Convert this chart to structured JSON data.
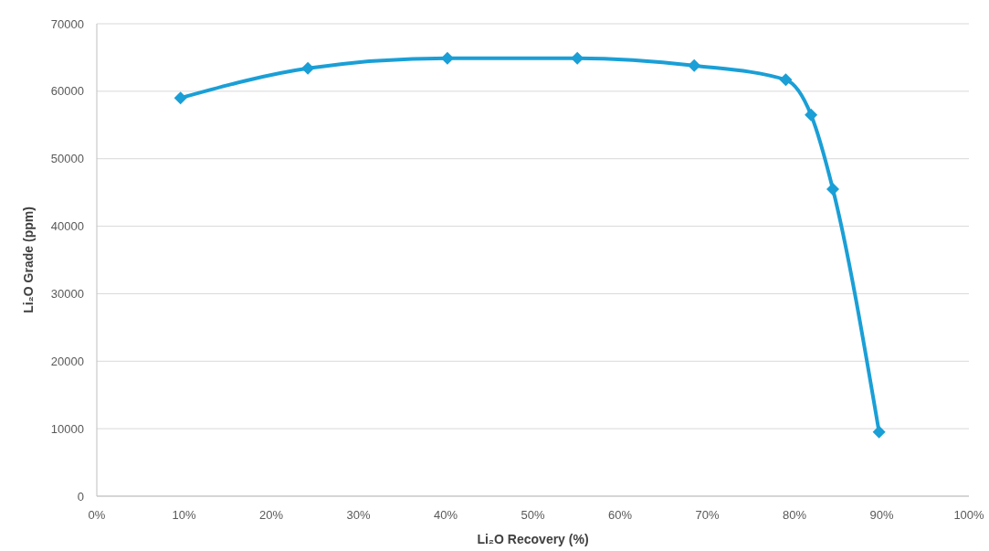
{
  "chart_data": {
    "type": "line",
    "xlabel": "Li₂O Recovery (%)",
    "ylabel": "Li₂O Grade (ppm)",
    "x": [
      9.6,
      24.2,
      40.2,
      55.1,
      68.5,
      79.0,
      81.9,
      84.4,
      89.7
    ],
    "series": [
      {
        "color": "#1a9fd6",
        "values": [
          59000,
          63400,
          64900,
          64900,
          63800,
          61700,
          56500,
          45500,
          9500
        ]
      }
    ],
    "xlim": [
      0,
      100
    ],
    "xticks": [
      {
        "value": 0,
        "label": "0%"
      },
      {
        "value": 10,
        "label": "10%"
      },
      {
        "value": 20,
        "label": "20%"
      },
      {
        "value": 30,
        "label": "30%"
      },
      {
        "value": 40,
        "label": "40%"
      },
      {
        "value": 50,
        "label": "50%"
      },
      {
        "value": 60,
        "label": "60%"
      },
      {
        "value": 70,
        "label": "70%"
      },
      {
        "value": 80,
        "label": "80%"
      },
      {
        "value": 90,
        "label": "90%"
      },
      {
        "value": 100,
        "label": "100%"
      }
    ],
    "ylim": [
      0,
      70000
    ],
    "yticks": [
      0,
      10000,
      20000,
      30000,
      40000,
      50000,
      60000,
      70000
    ],
    "grid": "y",
    "marker": "diamond"
  }
}
